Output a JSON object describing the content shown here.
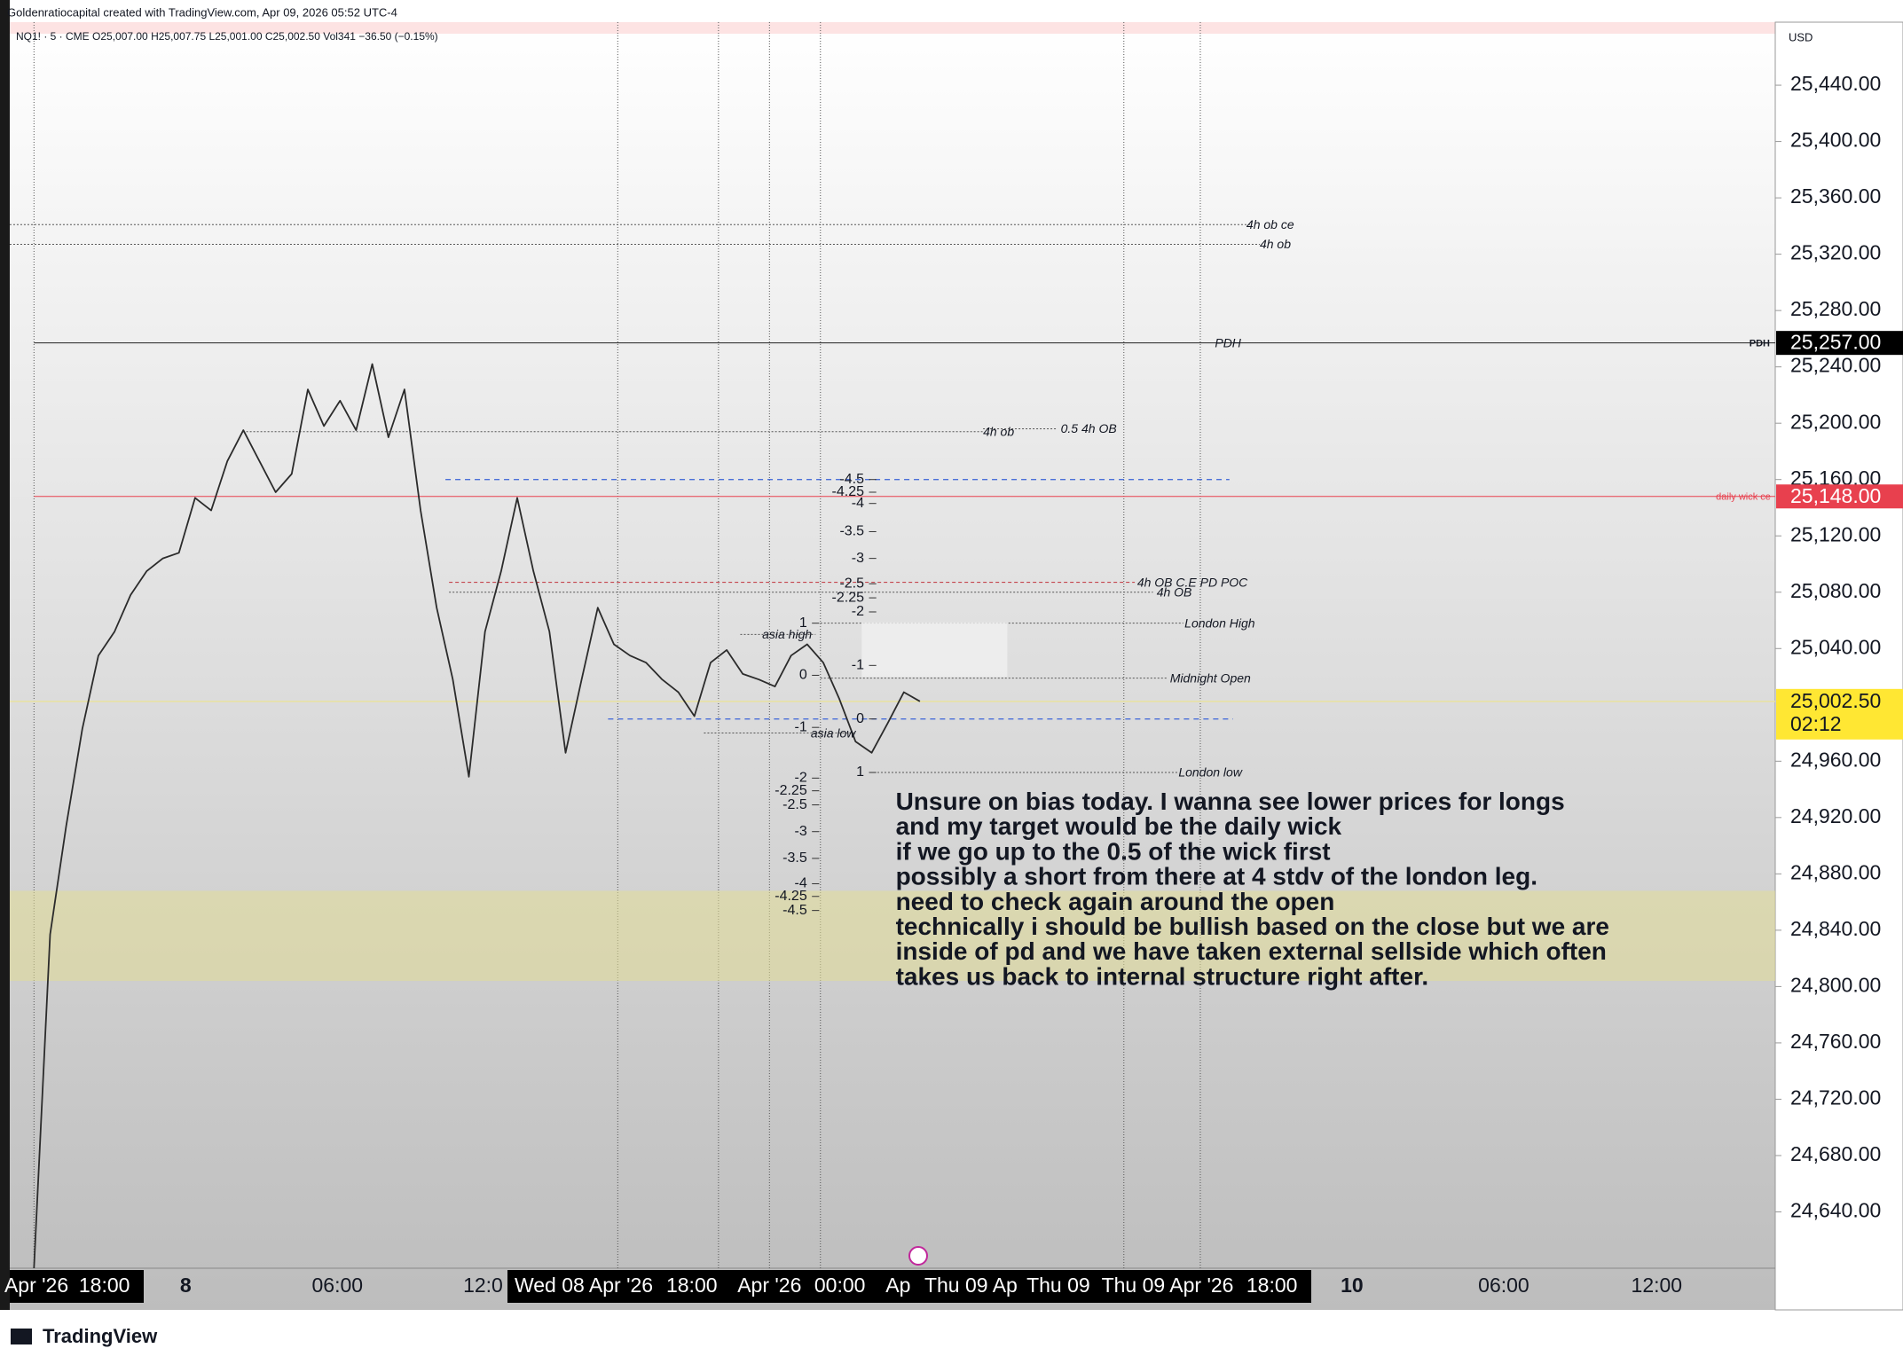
{
  "header": {
    "credit": "Goldenratiocapital created with TradingView.com, Apr 09, 2026 05:52 UTC-4",
    "legend": "NQ1! · 5 · CME  O25,007.00  H25,007.75  L25,001.00  C25,002.50  Vol341  −36.50 (−0.15%)",
    "footer": "TradingView"
  },
  "chart_data": {
    "type": "line",
    "color": "#2b2b2b",
    "values": [
      24600,
      24837,
      24914,
      24983,
      25035,
      25052,
      25078,
      25095,
      25104,
      25108,
      25147,
      25138,
      25173,
      25195,
      25173,
      25151,
      25164,
      25224,
      25198,
      25216,
      25195,
      25242,
      25190,
      25224,
      25138,
      25069,
      25018,
      24949,
      25052,
      25095,
      25147,
      25095,
      25052,
      24966,
      25018,
      25069,
      25043,
      25035,
      25030,
      25018,
      25009,
      24992,
      25030,
      25039,
      25022,
      25018,
      25013,
      25035,
      25043,
      25030,
      25004,
      24974,
      24966,
      24987,
      25009,
      25002.5
    ],
    "ylim": [
      24600,
      25485
    ],
    "axis_unit": "USD",
    "yticks": [
      {
        "value": 25440,
        "label": "25,440.00"
      },
      {
        "value": 25400,
        "label": "25,400.00"
      },
      {
        "value": 25360,
        "label": "25,360.00"
      },
      {
        "value": 25320,
        "label": "25,320.00"
      },
      {
        "value": 25280,
        "label": "25,280.00"
      },
      {
        "value": 25240,
        "label": "25,240.00"
      },
      {
        "value": 25200,
        "label": "25,200.00"
      },
      {
        "value": 25160,
        "label": "25,160.00"
      },
      {
        "value": 25120,
        "label": "25,120.00"
      },
      {
        "value": 25080,
        "label": "25,080.00"
      },
      {
        "value": 25040,
        "label": "25,040.00"
      },
      {
        "value": 24960,
        "label": "24,960.00"
      },
      {
        "value": 24920,
        "label": "24,920.00"
      },
      {
        "value": 24880,
        "label": "24,880.00"
      },
      {
        "value": 24840,
        "label": "24,840.00"
      },
      {
        "value": 24800,
        "label": "24,800.00"
      },
      {
        "value": 24760,
        "label": "24,760.00"
      },
      {
        "value": 24720,
        "label": "24,720.00"
      },
      {
        "value": 24680,
        "label": "24,680.00"
      },
      {
        "value": 24640,
        "label": "24,640.00"
      }
    ],
    "time_labels": [
      "Apr '26",
      "18:00",
      "8",
      "06:00",
      "12:0",
      "Wed 08 Apr '26",
      "18:00",
      "Apr '26",
      "00:00",
      "Ap",
      "Thu 09 Ap",
      "Thu 09",
      "Thu 09 Apr '26",
      "18:00",
      "10",
      "06:00",
      "12:00"
    ],
    "levels": [
      {
        "label": "4h ob ce",
        "price": 25341
      },
      {
        "label": "4h ob",
        "price": 25327
      },
      {
        "label": "PDH",
        "price": 25257
      },
      {
        "label": "4h ob",
        "price": 25194
      },
      {
        "label": "0.5 4h OB",
        "price": 25196
      },
      {
        "label": "daily wick ce",
        "price": 25148
      },
      {
        "label": "4h OB C.E PD POC",
        "price": 25087
      },
      {
        "label": "4h OB",
        "price": 25080
      },
      {
        "label": "London High",
        "price": 25058
      },
      {
        "label": "asia high",
        "price": 25050
      },
      {
        "label": "Midnight Open",
        "price": 25019
      },
      {
        "label": "asia low",
        "price": 24980
      },
      {
        "label": "London low",
        "price": 24952
      }
    ],
    "dashed_levels": [
      25160,
      24990
    ],
    "zone": [
      24804,
      24868
    ],
    "fib_right": [
      {
        "label": "-4.5",
        "price": 25160
      },
      {
        "label": "-4.25",
        "price": 25151
      },
      {
        "label": "-4",
        "price": 25143
      },
      {
        "label": "-3.5",
        "price": 25123
      },
      {
        "label": "-3",
        "price": 25104
      },
      {
        "label": "-2.5",
        "price": 25086
      },
      {
        "label": "-2.25",
        "price": 25076
      },
      {
        "label": "-2",
        "price": 25066
      },
      {
        "label": "-1",
        "price": 25028
      },
      {
        "label": "0",
        "price": 24990
      },
      {
        "label": "1",
        "price": 24952
      }
    ],
    "fib_left": [
      {
        "label": "1",
        "price": 25058
      },
      {
        "label": "0",
        "price": 25021
      },
      {
        "label": "-1",
        "price": 24984
      },
      {
        "label": "-2",
        "price": 24948
      },
      {
        "label": "-2.25",
        "price": 24939
      },
      {
        "label": "-2.5",
        "price": 24929
      },
      {
        "label": "-3",
        "price": 24910
      },
      {
        "label": "-3.5",
        "price": 24891
      },
      {
        "label": "-4",
        "price": 24873
      },
      {
        "label": "-4.25",
        "price": 24864
      },
      {
        "label": "-4.5",
        "price": 24854
      }
    ],
    "badges": [
      {
        "value": 25257,
        "label": "25,257.00",
        "color": "#000000"
      },
      {
        "value": 25148,
        "label": "25,148.00",
        "color": "#e8404e"
      }
    ],
    "last_price": {
      "value": 25002.5,
      "label": "25,002.50",
      "timer": "02:12",
      "color": "#ffe733"
    },
    "note": [
      "Unsure on bias today. I wanna see lower prices for longs",
      "and my target would be the daily wick",
      "if we go up to the 0.5 of the wick first",
      "possibly a short from there at 4 stdv of the london leg.",
      "need to check again around the open",
      "technically i should be bullish based on the close but we are",
      "inside of pd and we have taken external sellside which often",
      "takes us back to internal structure right after."
    ]
  }
}
